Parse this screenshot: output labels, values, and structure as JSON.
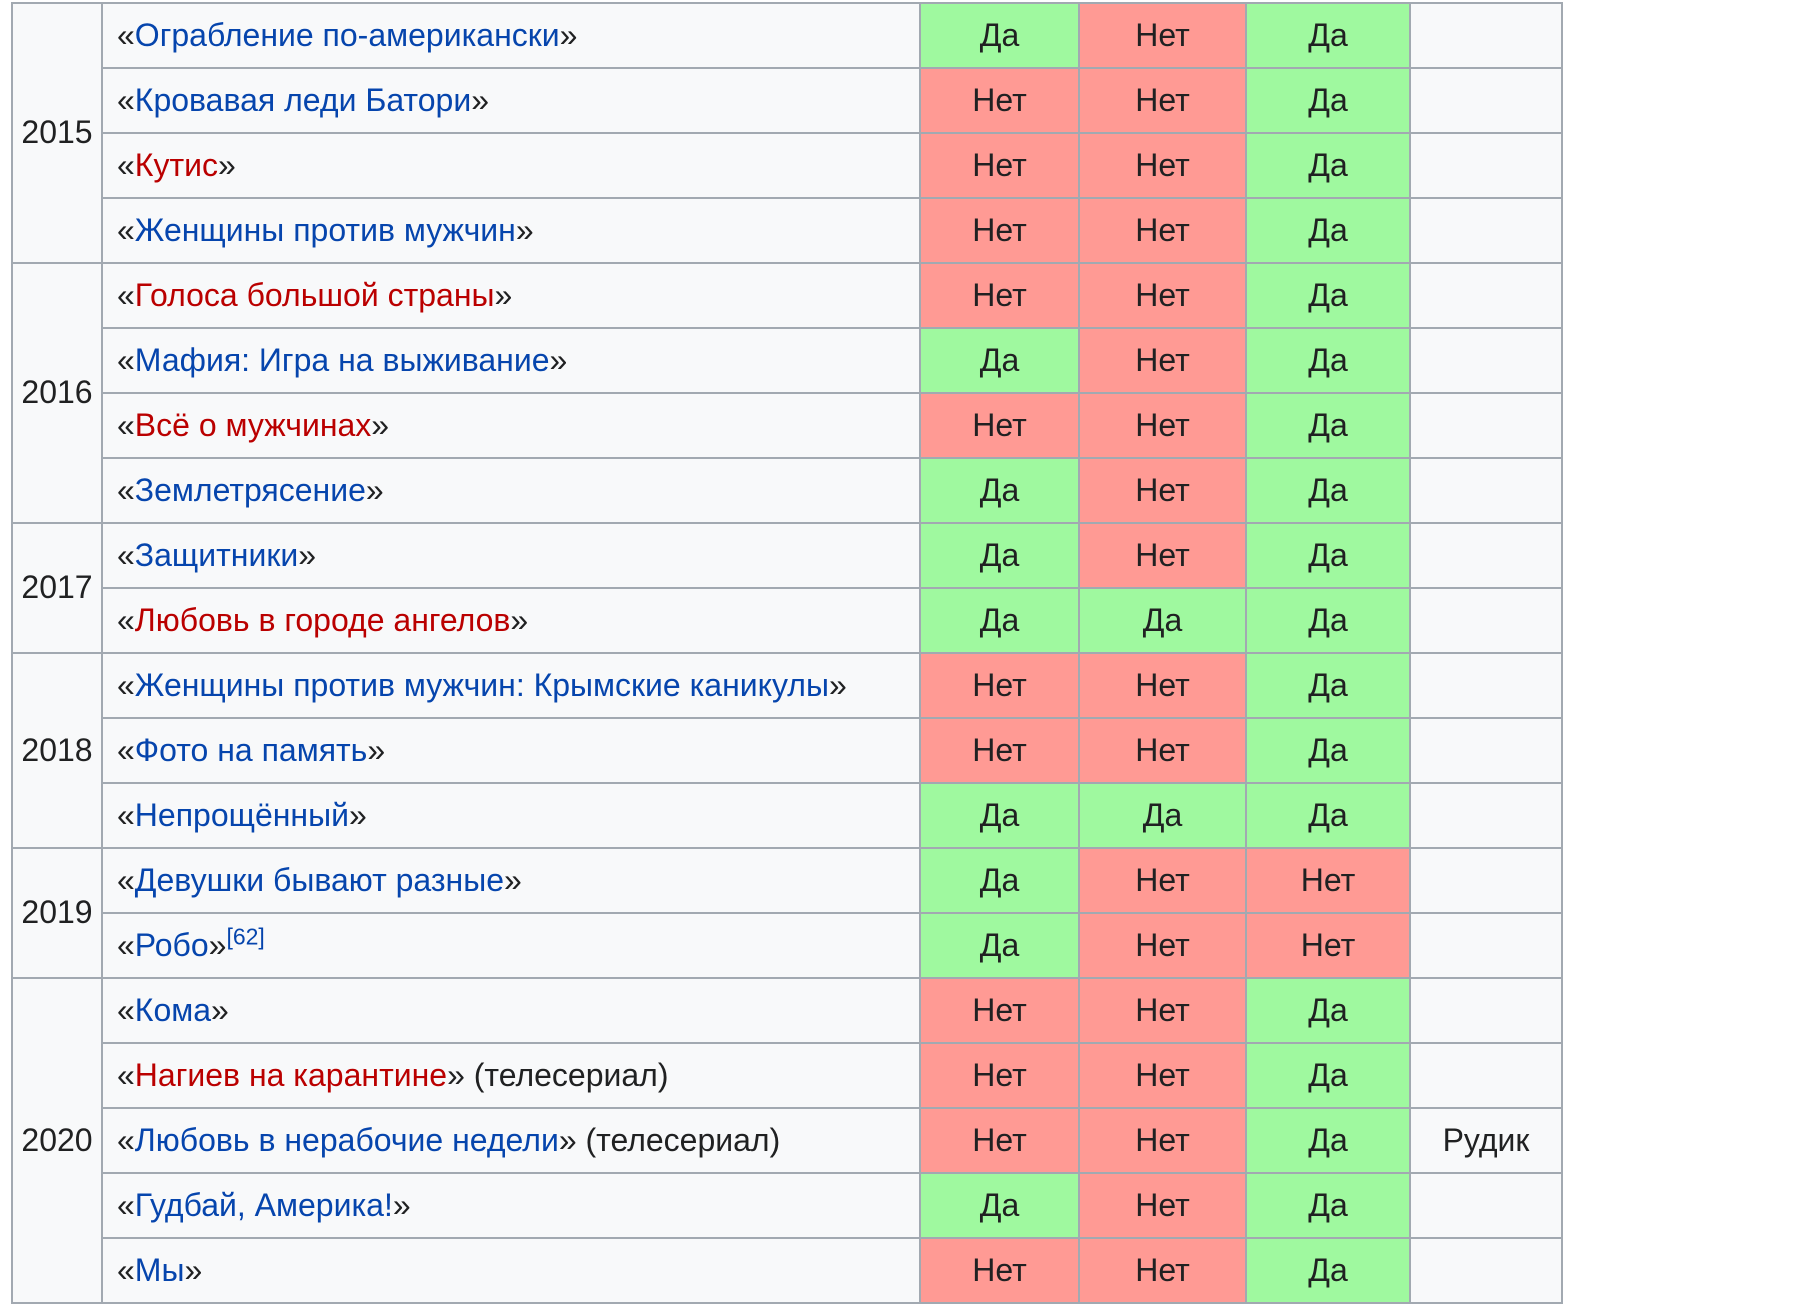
{
  "table": {
    "groups": [
      {
        "year": "2015",
        "rows": [
          {
            "title": "Ограбление по-американски",
            "link": "blue",
            "suffix": "",
            "ref": "",
            "c1": "Да",
            "c2": "Нет",
            "c3": "Да",
            "note": ""
          },
          {
            "title": "Кровавая леди Батори",
            "link": "blue",
            "suffix": "",
            "ref": "",
            "c1": "Нет",
            "c2": "Нет",
            "c3": "Да",
            "note": ""
          },
          {
            "title": "Кутис",
            "link": "red",
            "suffix": "",
            "ref": "",
            "c1": "Нет",
            "c2": "Нет",
            "c3": "Да",
            "note": ""
          },
          {
            "title": "Женщины против мужчин",
            "link": "blue",
            "suffix": "",
            "ref": "",
            "c1": "Нет",
            "c2": "Нет",
            "c3": "Да",
            "note": ""
          }
        ]
      },
      {
        "year": "2016",
        "rows": [
          {
            "title": "Голоса большой страны",
            "link": "red",
            "suffix": "",
            "ref": "",
            "c1": "Нет",
            "c2": "Нет",
            "c3": "Да",
            "note": ""
          },
          {
            "title": "Мафия: Игра на выживание",
            "link": "blue",
            "suffix": "",
            "ref": "",
            "c1": "Да",
            "c2": "Нет",
            "c3": "Да",
            "note": ""
          },
          {
            "title": "Всё о мужчинах",
            "link": "red",
            "suffix": "",
            "ref": "",
            "c1": "Нет",
            "c2": "Нет",
            "c3": "Да",
            "note": ""
          },
          {
            "title": "Землетрясение",
            "link": "blue",
            "suffix": "",
            "ref": "",
            "c1": "Да",
            "c2": "Нет",
            "c3": "Да",
            "note": ""
          }
        ]
      },
      {
        "year": "2017",
        "rows": [
          {
            "title": "Защитники",
            "link": "blue",
            "suffix": "",
            "ref": "",
            "c1": "Да",
            "c2": "Нет",
            "c3": "Да",
            "note": ""
          },
          {
            "title": "Любовь в городе ангелов",
            "link": "red",
            "suffix": "",
            "ref": "",
            "c1": "Да",
            "c2": "Да",
            "c3": "Да",
            "note": ""
          }
        ]
      },
      {
        "year": "2018",
        "rows": [
          {
            "title": "Женщины против мужчин: Крымские каникулы",
            "link": "blue",
            "suffix": "",
            "ref": "",
            "c1": "Нет",
            "c2": "Нет",
            "c3": "Да",
            "note": ""
          },
          {
            "title": "Фото на память",
            "link": "blue",
            "suffix": "",
            "ref": "",
            "c1": "Нет",
            "c2": "Нет",
            "c3": "Да",
            "note": ""
          },
          {
            "title": "Непрощённый",
            "link": "blue",
            "suffix": "",
            "ref": "",
            "c1": "Да",
            "c2": "Да",
            "c3": "Да",
            "note": ""
          }
        ]
      },
      {
        "year": "2019",
        "rows": [
          {
            "title": "Девушки бывают разные",
            "link": "blue",
            "suffix": "",
            "ref": "",
            "c1": "Да",
            "c2": "Нет",
            "c3": "Нет",
            "note": ""
          },
          {
            "title": "Робо",
            "link": "blue",
            "suffix": "",
            "ref": "[62]",
            "c1": "Да",
            "c2": "Нет",
            "c3": "Нет",
            "note": ""
          }
        ]
      },
      {
        "year": "2020",
        "rows": [
          {
            "title": "Кома",
            "link": "blue",
            "suffix": "",
            "ref": "",
            "c1": "Нет",
            "c2": "Нет",
            "c3": "Да",
            "note": ""
          },
          {
            "title": "Нагиев на карантине",
            "link": "red",
            "suffix": " (телесериал)",
            "ref": "",
            "c1": "Нет",
            "c2": "Нет",
            "c3": "Да",
            "note": ""
          },
          {
            "title": "Любовь в нерабочие недели",
            "link": "blue",
            "suffix": " (телесериал)",
            "ref": "",
            "c1": "Нет",
            "c2": "Нет",
            "c3": "Да",
            "note": "Рудик"
          },
          {
            "title": "Гудбай, Америка!",
            "link": "blue",
            "suffix": "",
            "ref": "",
            "c1": "Да",
            "c2": "Нет",
            "c3": "Да",
            "note": ""
          },
          {
            "title": "Мы",
            "link": "blue",
            "suffix": "",
            "ref": "",
            "c1": "Нет",
            "c2": "Нет",
            "c3": "Да",
            "note": ""
          }
        ]
      }
    ],
    "yes_value": "Да",
    "colors": {
      "yes": "#9ff99f",
      "no": "#ff9a94",
      "link_blue": "#0645ad",
      "link_red": "#ba0000",
      "border": "#a2a9b1"
    }
  }
}
